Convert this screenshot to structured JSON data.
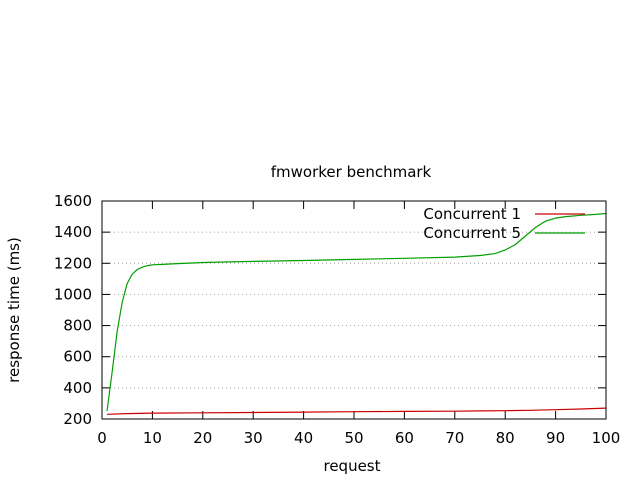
{
  "chart_data": {
    "type": "line",
    "title": "fmworker benchmark",
    "xlabel": "request",
    "ylabel": "response time (ms)",
    "xlim": [
      0,
      100
    ],
    "ylim": [
      200,
      1600
    ],
    "xticks": [
      0,
      10,
      20,
      30,
      40,
      50,
      60,
      70,
      80,
      90,
      100
    ],
    "yticks": [
      200,
      400,
      600,
      800,
      1000,
      1200,
      1400,
      1600
    ],
    "grid": "horizontal dotted",
    "legend_position": "top-right",
    "series": [
      {
        "name": "Concurrent 1",
        "color": "#cc0000",
        "x": [
          1,
          5,
          10,
          20,
          30,
          40,
          50,
          60,
          70,
          75,
          80,
          85,
          90,
          95,
          100
        ],
        "y": [
          230,
          235,
          238,
          240,
          242,
          244,
          247,
          249,
          250,
          252,
          253,
          256,
          260,
          264,
          270
        ]
      },
      {
        "name": "Concurrent 5",
        "color": "#00a000",
        "x": [
          1,
          2,
          3,
          4,
          5,
          6,
          7,
          8,
          9,
          10,
          12,
          15,
          20,
          30,
          40,
          50,
          60,
          70,
          75,
          78,
          80,
          82,
          84,
          86,
          88,
          90,
          92,
          95,
          98,
          100
        ],
        "y": [
          250,
          500,
          760,
          950,
          1070,
          1130,
          1160,
          1175,
          1185,
          1190,
          1193,
          1198,
          1205,
          1212,
          1218,
          1225,
          1232,
          1240,
          1250,
          1262,
          1285,
          1320,
          1375,
          1430,
          1470,
          1490,
          1500,
          1508,
          1514,
          1520
        ]
      }
    ]
  }
}
